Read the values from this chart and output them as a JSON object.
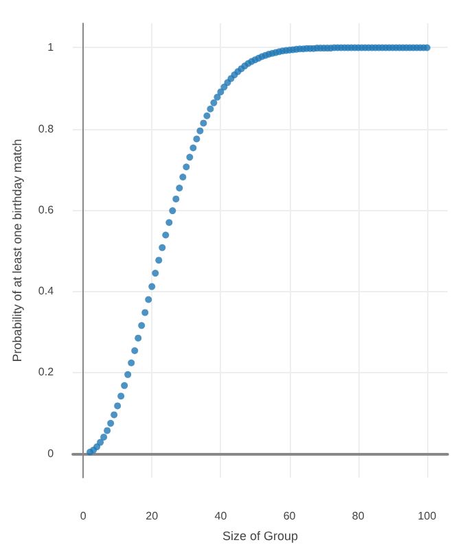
{
  "chart_data": {
    "type": "scatter",
    "xlabel": "Size of Group",
    "ylabel": "Probability of at least one birthday match",
    "x": [
      2,
      3,
      4,
      5,
      6,
      7,
      8,
      9,
      10,
      11,
      12,
      13,
      14,
      15,
      16,
      17,
      18,
      19,
      20,
      21,
      22,
      23,
      24,
      25,
      26,
      27,
      28,
      29,
      30,
      31,
      32,
      33,
      34,
      35,
      36,
      37,
      38,
      39,
      40,
      41,
      42,
      43,
      44,
      45,
      46,
      47,
      48,
      49,
      50,
      51,
      52,
      53,
      54,
      55,
      56,
      57,
      58,
      59,
      60,
      61,
      62,
      63,
      64,
      65,
      66,
      67,
      68,
      69,
      70,
      71,
      72,
      73,
      74,
      75,
      76,
      77,
      78,
      79,
      80,
      81,
      82,
      83,
      84,
      85,
      86,
      87,
      88,
      89,
      90,
      91,
      92,
      93,
      94,
      95,
      96,
      97,
      98,
      99,
      100
    ],
    "series": [
      {
        "color": "#1f77b4",
        "values": [
          0.003,
          0.008,
          0.016,
          0.027,
          0.04,
          0.056,
          0.074,
          0.095,
          0.117,
          0.141,
          0.167,
          0.194,
          0.223,
          0.253,
          0.284,
          0.315,
          0.347,
          0.379,
          0.411,
          0.444,
          0.476,
          0.507,
          0.538,
          0.569,
          0.598,
          0.627,
          0.654,
          0.681,
          0.706,
          0.73,
          0.753,
          0.775,
          0.795,
          0.814,
          0.832,
          0.849,
          0.864,
          0.878,
          0.891,
          0.903,
          0.914,
          0.924,
          0.933,
          0.941,
          0.948,
          0.955,
          0.961,
          0.966,
          0.97,
          0.974,
          0.978,
          0.981,
          0.984,
          0.986,
          0.988,
          0.99,
          0.992,
          0.993,
          0.994,
          0.995,
          0.996,
          0.997,
          0.997,
          0.998,
          0.998,
          0.998,
          0.999,
          0.999,
          0.999,
          0.999,
          0.999,
          1,
          1,
          1,
          1,
          1,
          1,
          1,
          1,
          1,
          1,
          1,
          1,
          1,
          1,
          1,
          1,
          1,
          1,
          1,
          1,
          1,
          1,
          1,
          1,
          1,
          1,
          1,
          1
        ]
      }
    ],
    "xlim": [
      -3,
      106
    ],
    "ylim": [
      -0.06,
      1.06
    ],
    "xticks": [
      0,
      20,
      40,
      60,
      80,
      100
    ],
    "yticks": [
      0,
      0.2,
      0.4,
      0.6,
      0.8,
      1
    ],
    "grid": true,
    "marker": "circle"
  }
}
